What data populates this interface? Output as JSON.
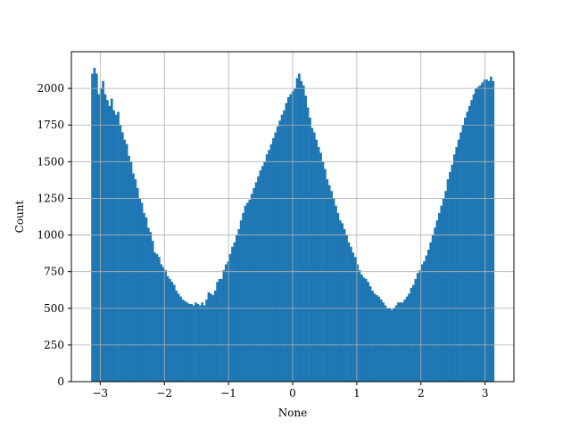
{
  "chart_data": {
    "type": "bar",
    "subtype": "histogram",
    "xlabel": "None",
    "ylabel": "Count",
    "xlim": [
      -3.45,
      3.45
    ],
    "ylim": [
      0,
      2250
    ],
    "xticks": [
      -3,
      -2,
      -1,
      0,
      1,
      2,
      3
    ],
    "yticks": [
      0,
      250,
      500,
      750,
      1000,
      1250,
      1500,
      1750,
      2000
    ],
    "grid": true,
    "color": "#1f77b4",
    "bins": {
      "start": -3.14159,
      "end": 3.14159,
      "counts": [
        2100,
        2140,
        2100,
        1960,
        2000,
        2050,
        1960,
        1920,
        1880,
        1930,
        1850,
        1820,
        1840,
        1750,
        1700,
        1650,
        1620,
        1540,
        1500,
        1420,
        1380,
        1320,
        1250,
        1220,
        1150,
        1120,
        1050,
        1020,
        960,
        880,
        870,
        850,
        800,
        780,
        760,
        720,
        700,
        680,
        660,
        620,
        600,
        580,
        560,
        550,
        540,
        530,
        530,
        520,
        540,
        530,
        520,
        540,
        520,
        560,
        610,
        600,
        590,
        620,
        680,
        700,
        700,
        760,
        800,
        820,
        870,
        920,
        950,
        1000,
        1040,
        1100,
        1150,
        1200,
        1220,
        1240,
        1280,
        1320,
        1360,
        1400,
        1440,
        1470,
        1500,
        1550,
        1580,
        1620,
        1660,
        1700,
        1740,
        1780,
        1820,
        1850,
        1900,
        1940,
        1960,
        1980,
        2000,
        2070,
        2100,
        2050,
        2020,
        1950,
        1870,
        1800,
        1730,
        1700,
        1650,
        1600,
        1560,
        1500,
        1450,
        1380,
        1340,
        1300,
        1250,
        1200,
        1150,
        1100,
        1080,
        1040,
        1000,
        950,
        920,
        880,
        850,
        800,
        760,
        730,
        710,
        700,
        680,
        650,
        620,
        600,
        590,
        580,
        560,
        540,
        520,
        500,
        500,
        490,
        500,
        520,
        540,
        540,
        540,
        560,
        580,
        600,
        640,
        660,
        700,
        740,
        760,
        800,
        820,
        860,
        900,
        950,
        1000,
        1050,
        1100,
        1150,
        1200,
        1250,
        1300,
        1380,
        1430,
        1480,
        1550,
        1600,
        1650,
        1700,
        1750,
        1800,
        1840,
        1880,
        1920,
        1960,
        2000,
        2010,
        2020,
        2040,
        2060,
        2060,
        2050,
        2080,
        2050
      ]
    }
  }
}
